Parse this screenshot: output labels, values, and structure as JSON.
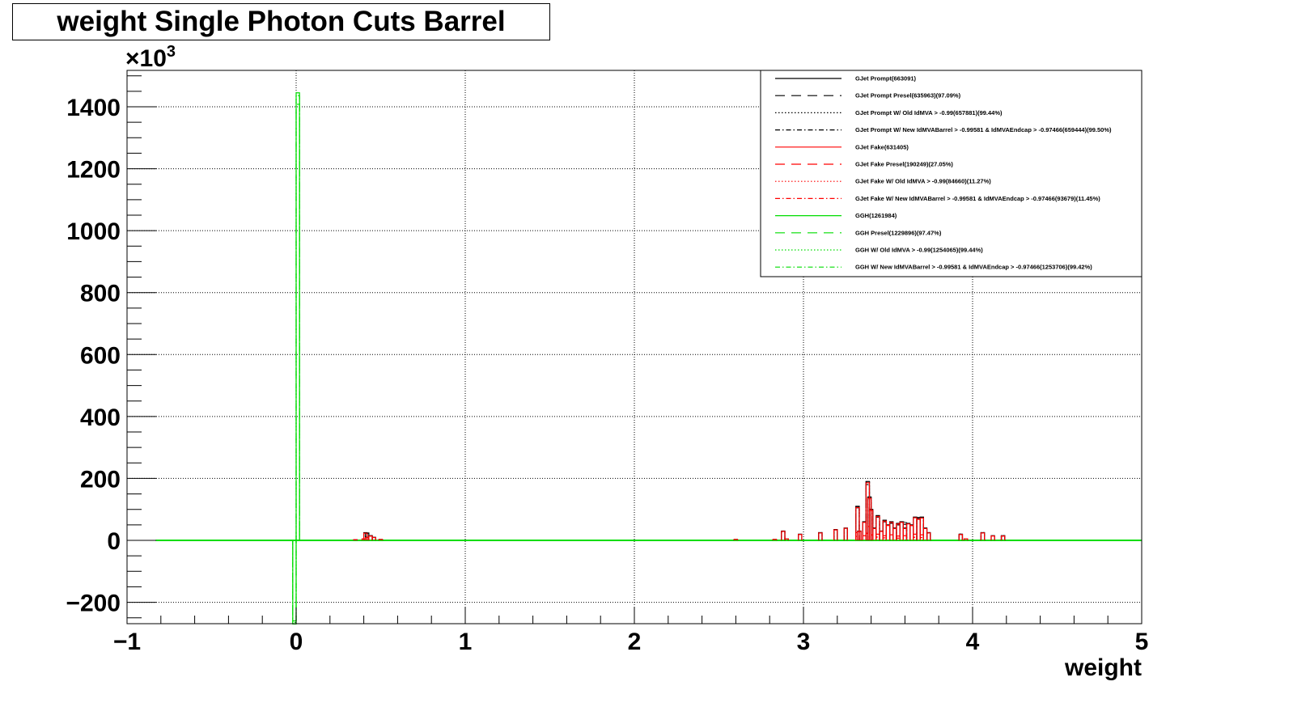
{
  "chart_data": {
    "type": "histogram",
    "title": "weight Single Photon Cuts Barrel",
    "xlabel": "weight",
    "ylabel": "",
    "y_multiplier": "×10^3",
    "xlim": [
      -1,
      5
    ],
    "ylim": [
      -270,
      1510
    ],
    "x_ticks": [
      -1,
      0,
      1,
      2,
      3,
      4,
      5
    ],
    "y_ticks": [
      -200,
      0,
      200,
      400,
      600,
      800,
      1000,
      1200,
      1400
    ],
    "x_tick_labels": [
      "−1",
      "0",
      "1",
      "2",
      "3",
      "4",
      "5"
    ],
    "y_tick_labels": [
      "−200",
      "0",
      "200",
      "400",
      "600",
      "800",
      "1000",
      "1200",
      "1400"
    ],
    "multiplier_base": "×10",
    "multiplier_exp": "3",
    "grid": true,
    "legend_position": "top-right",
    "series": [
      {
        "name": "GJet Prompt(663091)",
        "color": "#000000",
        "style": "solid",
        "x": [
          0.35,
          0.4,
          0.41,
          0.42,
          0.44,
          0.46,
          0.5,
          2.6,
          2.83,
          2.88,
          2.9,
          2.98,
          3.1,
          3.19,
          3.25,
          3.32,
          3.33,
          3.36,
          3.38,
          3.39,
          3.4,
          3.42,
          3.44,
          3.46,
          3.48,
          3.5,
          3.52,
          3.54,
          3.56,
          3.58,
          3.6,
          3.62,
          3.64,
          3.66,
          3.68,
          3.7,
          3.72,
          3.74,
          3.93,
          3.96,
          4.06,
          4.12,
          4.18
        ],
        "y": [
          2,
          5,
          25,
          10,
          15,
          10,
          3,
          3,
          3,
          30,
          5,
          20,
          25,
          35,
          40,
          110,
          30,
          60,
          190,
          140,
          100,
          40,
          80,
          30,
          65,
          50,
          60,
          40,
          55,
          60,
          40,
          55,
          50,
          75,
          70,
          75,
          40,
          25,
          20,
          5,
          25,
          15,
          15
        ]
      },
      {
        "name": "GJet Prompt Presel(635963)(97.09%)",
        "color": "#000000",
        "style": "dashed",
        "x": [
          0.42,
          0.44,
          2.88,
          3.1,
          3.19,
          3.25,
          3.32,
          3.38,
          3.39,
          3.4,
          3.44,
          3.48,
          3.52,
          3.56,
          3.6,
          3.64,
          3.68,
          3.7,
          3.74,
          3.93,
          4.06,
          4.18
        ],
        "y": [
          22,
          14,
          28,
          24,
          33,
          38,
          105,
          180,
          135,
          95,
          75,
          60,
          55,
          50,
          52,
          48,
          70,
          72,
          24,
          19,
          24,
          14
        ]
      },
      {
        "name": "GJet Prompt W/ Old IdMVA > -0.99(657881)(99.44%)",
        "color": "#000000",
        "style": "dotted",
        "x": [
          0.42,
          0.44,
          2.88,
          3.1,
          3.19,
          3.25,
          3.32,
          3.38,
          3.39,
          3.4,
          3.44,
          3.48,
          3.52,
          3.56,
          3.6,
          3.64,
          3.68,
          3.7,
          3.74,
          3.93,
          4.06,
          4.18
        ],
        "y": [
          24,
          15,
          29,
          25,
          34,
          39,
          108,
          188,
          138,
          98,
          78,
          63,
          58,
          53,
          58,
          49,
          73,
          74,
          25,
          20,
          25,
          15
        ]
      },
      {
        "name": "GJet Prompt W/ New IdMVABarrel > -0.99581 & IdMVAEndcap > -0.97466(659444)(99.50%)",
        "color": "#000000",
        "style": "dashdot",
        "x": [
          0.42,
          0.44,
          2.88,
          3.1,
          3.19,
          3.25,
          3.32,
          3.38,
          3.39,
          3.4,
          3.44,
          3.48,
          3.52,
          3.56,
          3.6,
          3.64,
          3.68,
          3.7,
          3.74,
          3.93,
          4.06,
          4.18
        ],
        "y": [
          24,
          15,
          29,
          25,
          34,
          39,
          109,
          189,
          139,
          99,
          79,
          64,
          59,
          54,
          59,
          49,
          74,
          74,
          25,
          20,
          25,
          15
        ]
      },
      {
        "name": "GJet Fake(631405)",
        "color": "#ff0000",
        "style": "solid",
        "x": [
          0.35,
          0.4,
          0.41,
          0.42,
          0.44,
          0.46,
          0.5,
          2.6,
          2.83,
          2.88,
          2.9,
          2.98,
          3.1,
          3.19,
          3.25,
          3.32,
          3.33,
          3.36,
          3.38,
          3.39,
          3.4,
          3.42,
          3.44,
          3.46,
          3.48,
          3.5,
          3.52,
          3.54,
          3.56,
          3.58,
          3.6,
          3.62,
          3.64,
          3.66,
          3.68,
          3.7,
          3.72,
          3.74,
          3.93,
          3.96,
          4.06,
          4.12,
          4.18
        ],
        "y": [
          2,
          5,
          23,
          9,
          14,
          9,
          3,
          3,
          3,
          29,
          5,
          19,
          24,
          34,
          39,
          106,
          29,
          58,
          186,
          136,
          97,
          38,
          77,
          29,
          62,
          48,
          58,
          38,
          53,
          58,
          38,
          53,
          48,
          73,
          68,
          72,
          38,
          24,
          19,
          5,
          24,
          14,
          14
        ]
      },
      {
        "name": "GJet Fake Presel(190249)(27.05%)",
        "color": "#ff0000",
        "style": "dashed",
        "x": [
          3.32,
          3.36,
          3.38,
          3.4,
          3.44,
          3.48,
          3.52,
          3.56,
          3.6,
          3.66,
          3.7
        ],
        "y": [
          25,
          15,
          45,
          35,
          20,
          15,
          18,
          14,
          15,
          20,
          18
        ]
      },
      {
        "name": "GJet Fake W/ Old IdMVA > -0.99(84660)(11.27%)",
        "color": "#ff0000",
        "style": "dotted",
        "x": [
          3.32,
          3.38,
          3.4,
          3.44,
          3.48,
          3.56,
          3.66,
          3.7
        ],
        "y": [
          12,
          22,
          17,
          10,
          8,
          7,
          10,
          9
        ]
      },
      {
        "name": "GJet Fake W/ New IdMVABarrel > -0.99581 & IdMVAEndcap > -0.97466(93679)(11.45%)",
        "color": "#ff0000",
        "style": "dashdot",
        "x": [
          3.32,
          3.38,
          3.4,
          3.44,
          3.48,
          3.56,
          3.66,
          3.7
        ],
        "y": [
          13,
          23,
          18,
          11,
          8,
          7,
          10,
          9
        ]
      },
      {
        "name": "GGH(1261984)",
        "color": "#00dd00",
        "style": "solid",
        "x": [
          -0.01,
          0.01
        ],
        "y": [
          -270,
          1445
        ]
      },
      {
        "name": "GGH Presel(1229896)(97.47%)",
        "color": "#00dd00",
        "style": "dashed",
        "x": [
          -0.01,
          0.01
        ],
        "y": [
          -260,
          1408
        ]
      },
      {
        "name": "GGH W/ Old IdMVA > -0.99(1254065)(99.44%)",
        "color": "#00dd00",
        "style": "dotted",
        "x": [
          -0.01,
          0.01
        ],
        "y": [
          -265,
          1436
        ]
      },
      {
        "name": "GGH W/ New IdMVABarrel > -0.99581 & IdMVAEndcap > -0.97466(1253706)(99.42%)",
        "color": "#00dd00",
        "style": "dashdot",
        "x": [
          -0.01,
          0.01
        ],
        "y": [
          -265,
          1436
        ]
      }
    ]
  }
}
